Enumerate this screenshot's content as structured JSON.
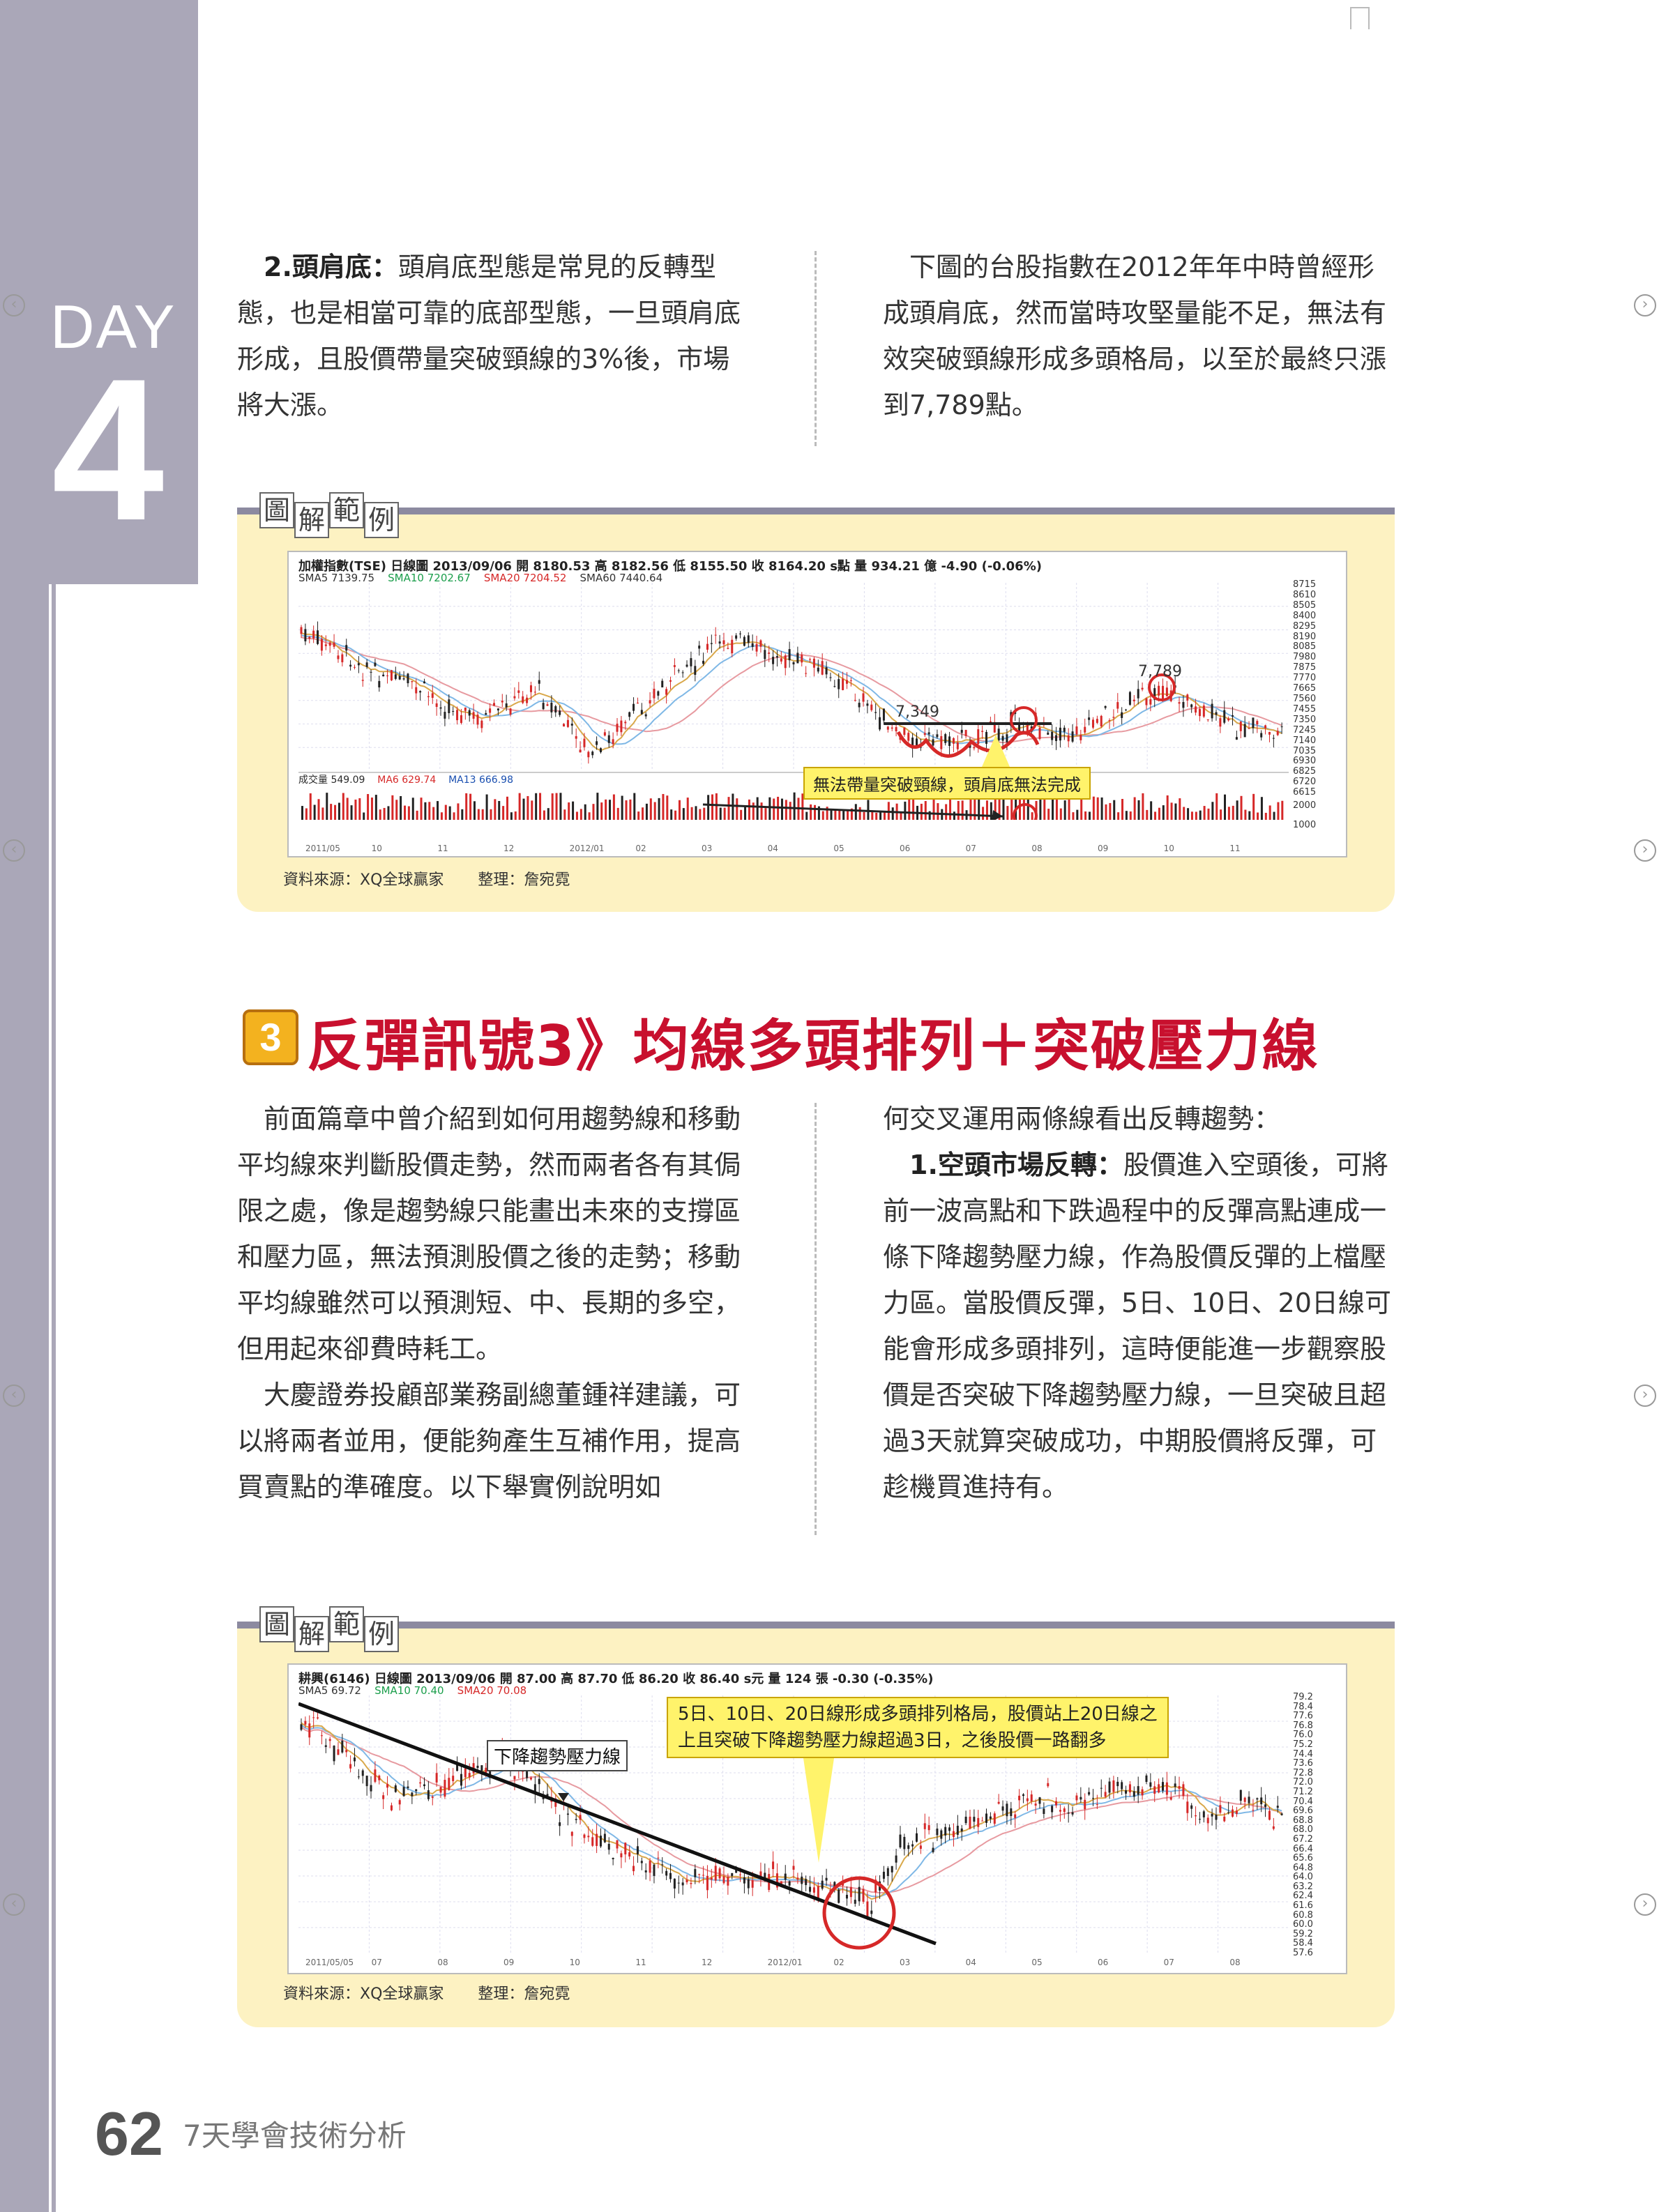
{
  "sidebar": {
    "day_label": "DAY",
    "day_number": "4"
  },
  "top_section": {
    "left_heading": "2.頭肩底：",
    "left_text": "頭肩底型態是常見的反轉型態，也是相當可靠的底部型態，一旦頭肩底形成，且股價帶量突破頸線的3%後，市場將大漲。",
    "right_text": "下圖的台股指數在2012年年中時曾經形成頭肩底，然而當時攻堅量能不足，無法有效突破頸線形成多頭格局，以至於最終只漲到7,789點。"
  },
  "chart1": {
    "tag": [
      "圖",
      "解",
      "範",
      "例"
    ],
    "header": "加權指數(TSE)  日線圖  2013/09/06  開 8180.53  高 8182.56  低 8155.50  收 8164.20 s點  量 934.21 億  -4.90 (-0.06%)",
    "ma_line": [
      "SMA5 7139.75",
      "SMA10 7202.67",
      "SMA20 7204.52",
      "SMA60 7440.64"
    ],
    "vol_line": [
      "成交量 549.09",
      "MA6 629.74",
      "MA13 666.98"
    ],
    "y_ticks": [
      "8715",
      "8610",
      "8505",
      "8400",
      "8295",
      "8190",
      "8085",
      "7980",
      "7875",
      "7770",
      "7665",
      "7560",
      "7455",
      "7350",
      "7245",
      "7140",
      "7035",
      "6930",
      "6825",
      "6720",
      "6615"
    ],
    "vol_ticks": [
      "2000",
      "1000"
    ],
    "x_ticks": [
      "2011/05",
      "10",
      "11",
      "12",
      "2012/01",
      "02",
      "03",
      "04",
      "05",
      "06",
      "07",
      "08",
      "09",
      "10",
      "11"
    ],
    "label_7349": "7,349",
    "label_7789": "7,789",
    "callout": "無法帶量突破頸線，頭肩底無法完成",
    "source": "資料來源：XQ全球贏家",
    "editor": "整理：詹宛霓"
  },
  "section3": {
    "number": "3",
    "title": "反彈訊號3》均線多頭排列＋突破壓力線",
    "left_p1": "前面篇章中曾介紹到如何用趨勢線和移動平均線來判斷股價走勢，然而兩者各有其侷限之處，像是趨勢線只能畫出未來的支撐區和壓力區，無法預測股價之後的走勢；移動平均線雖然可以預測短、中、長期的多空，但用起來卻費時耗工。",
    "left_p2": "大慶證券投顧部業務副總董鍾祥建議，可以將兩者並用，便能夠產生互補作用，提高買賣點的準確度。以下舉實例說明如",
    "right_p1": "何交叉運用兩條線看出反轉趨勢：",
    "right_heading": "1.空頭市場反轉：",
    "right_p2": "股價進入空頭後，可將前一波高點和下跌過程中的反彈高點連成一條下降趨勢壓力線，作為股價反彈的上檔壓力區。當股價反彈，5日、10日、20日線可能會形成多頭排列，這時便能進一步觀察股價是否突破下降趨勢壓力線，一旦突破且超過3天就算突破成功，中期股價將反彈，可趁機買進持有。"
  },
  "chart2": {
    "tag": [
      "圖",
      "解",
      "範",
      "例"
    ],
    "header": "耕興(6146)  日線圖  2013/09/06  開 87.00  高 87.70  低 86.20  收 86.40 s元  量 124 張  -0.30 (-0.35%)",
    "ma_line": [
      "SMA5 69.72",
      "SMA10 70.40",
      "SMA20 70.08"
    ],
    "y_ticks": [
      "79.2",
      "78.4",
      "77.6",
      "76.8",
      "76.0",
      "75.2",
      "74.4",
      "73.6",
      "72.8",
      "72.0",
      "71.2",
      "70.4",
      "69.6",
      "68.8",
      "68.0",
      "67.2",
      "66.4",
      "65.6",
      "64.8",
      "64.0",
      "63.2",
      "62.4",
      "61.6",
      "60.8",
      "60.0",
      "59.2",
      "58.4",
      "57.6"
    ],
    "x_ticks": [
      "2011/05/05",
      "07",
      "08",
      "09",
      "10",
      "11",
      "12",
      "2012/01",
      "02",
      "03",
      "04",
      "05",
      "06",
      "07",
      "08"
    ],
    "trend_label": "下降趨勢壓力線",
    "callout_line1": "5日、10日、20日線形成多頭排列格局，股價站上20日線之",
    "callout_line2": "上且突破下降趨勢壓力線超過3日，之後股價一路翻多",
    "source": "資料來源：XQ全球贏家",
    "editor": "整理：詹宛霓"
  },
  "footer": {
    "page_number": "62",
    "book_title": "7天學會技術分析"
  },
  "colors": {
    "band": "#aaa7b8",
    "panel": "#fdf2c2",
    "title_red": "#c8102e",
    "badge": "#f3b21f",
    "candle_up": "#d62828",
    "candle_down": "#222222"
  }
}
